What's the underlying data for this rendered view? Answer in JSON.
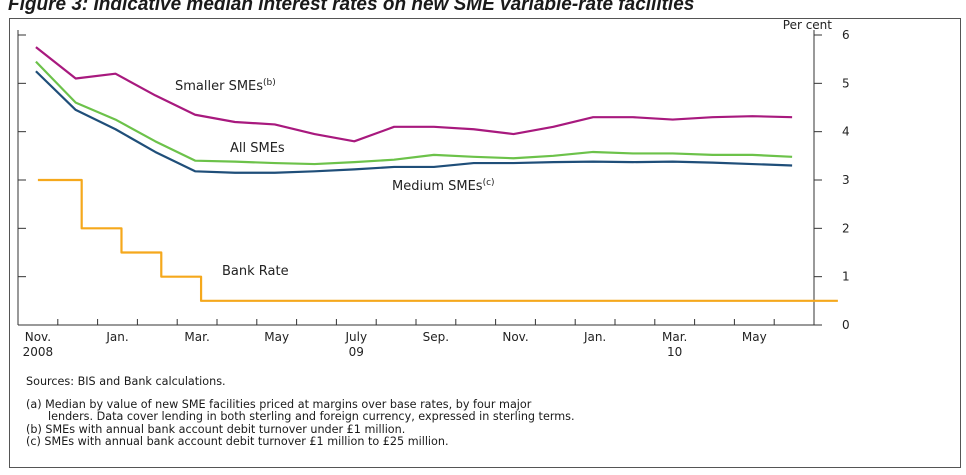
{
  "figure_title": "Figure 3: Indicative median interest rates on new SME variable-rate facilities",
  "chart_data": {
    "type": "line",
    "title": "Figure 3: Indicative median interest rates on new SME variable-rate facilities",
    "ylabel": "Per cent",
    "ylim": [
      0,
      6
    ],
    "yticks": [
      0,
      1,
      2,
      3,
      4,
      5,
      6
    ],
    "x": [
      "Nov. 2008",
      "Dec. 2008",
      "Jan. 2009",
      "Feb. 2009",
      "Mar. 2009",
      "Apr. 2009",
      "May 2009",
      "June 2009",
      "July 2009",
      "Aug. 2009",
      "Sep. 2009",
      "Oct. 2009",
      "Nov. 2009",
      "Dec. 2009",
      "Jan. 2010",
      "Feb. 2010",
      "Mar. 2010",
      "Apr. 2010",
      "May 2010",
      "June 2010"
    ],
    "xtick_labels": [
      {
        "month": "Nov.",
        "year": "2008"
      },
      {
        "month": "Jan.",
        "year": ""
      },
      {
        "month": "Mar.",
        "year": ""
      },
      {
        "month": "May",
        "year": ""
      },
      {
        "month": "July",
        "year": "09"
      },
      {
        "month": "Sep.",
        "year": ""
      },
      {
        "month": "Nov.",
        "year": ""
      },
      {
        "month": "Jan.",
        "year": ""
      },
      {
        "month": "Mar.",
        "year": "10"
      },
      {
        "month": "May",
        "year": ""
      }
    ],
    "series": [
      {
        "name": "Smaller SMEs",
        "superscript": "(b)",
        "color": "#a8197e",
        "step": false,
        "values": [
          5.75,
          5.1,
          5.2,
          4.75,
          4.35,
          4.2,
          4.15,
          3.95,
          3.8,
          4.1,
          4.1,
          4.05,
          3.95,
          4.1,
          4.3,
          4.3,
          4.25,
          4.3,
          4.32,
          4.3
        ]
      },
      {
        "name": "All SMEs",
        "superscript": "",
        "color": "#6cc24a",
        "step": false,
        "values": [
          5.45,
          4.6,
          4.25,
          3.8,
          3.4,
          3.38,
          3.35,
          3.33,
          3.37,
          3.42,
          3.52,
          3.48,
          3.45,
          3.5,
          3.58,
          3.55,
          3.55,
          3.52,
          3.52,
          3.48
        ]
      },
      {
        "name": "Medium SMEs",
        "superscript": "(c)",
        "color": "#1f4e79",
        "step": false,
        "values": [
          5.25,
          4.45,
          4.05,
          3.58,
          3.18,
          3.15,
          3.15,
          3.18,
          3.22,
          3.27,
          3.27,
          3.35,
          3.35,
          3.37,
          3.38,
          3.37,
          3.38,
          3.36,
          3.33,
          3.3
        ]
      },
      {
        "name": "Bank Rate",
        "superscript": "",
        "color": "#f5a81c",
        "step": true,
        "values": [
          3.0,
          2.0,
          1.5,
          1.0,
          0.5,
          0.5,
          0.5,
          0.5,
          0.5,
          0.5,
          0.5,
          0.5,
          0.5,
          0.5,
          0.5,
          0.5,
          0.5,
          0.5,
          0.5,
          0.5
        ]
      }
    ],
    "grid": false
  },
  "notes": {
    "sources": "Sources: BIS and Bank calculations.",
    "a_line1": "(a)  Median by value of new SME facilities priced at margins over base rates, by four major",
    "a_line2": "lenders.  Data cover lending in both sterling and foreign currency, expressed in sterling terms.",
    "b": "(b)  SMEs with annual bank account debit turnover under £1 million.",
    "c": "(c)  SMEs with annual bank account debit turnover £1 million to £25 million."
  }
}
